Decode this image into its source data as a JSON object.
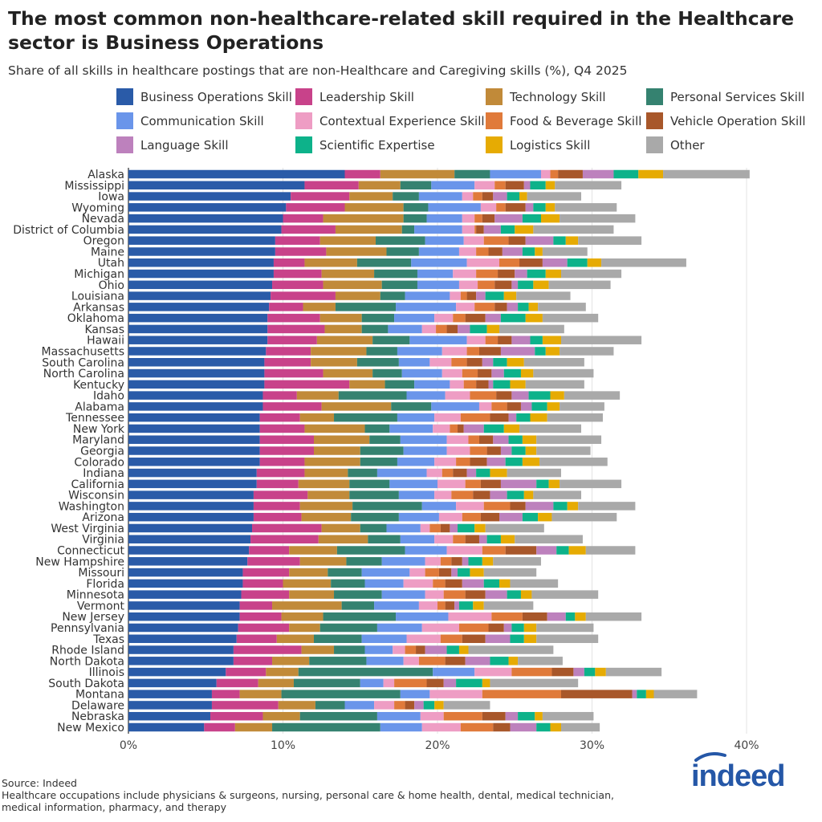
{
  "title": "The most common non-healthcare-related skill required in the Healthcare sector is Business Operations",
  "subtitle": "Share of all skills in healthcare postings that are non-Healthcare and Caregiving skills (%), Q4 2025",
  "source": "Source: Indeed",
  "note": "Healthcare occupations include physicians & surgeons, nursing, personal care & home health, dental, medical technician, medical information, pharmacy, and therapy",
  "logo_text": "indeed",
  "chart_data": {
    "type": "bar",
    "orientation": "horizontal",
    "stacked": true,
    "xlim": [
      0,
      40
    ],
    "x_ticks": [
      "0%",
      "10%",
      "20%",
      "30%",
      "40%"
    ],
    "x_tick_values": [
      0,
      10,
      20,
      30,
      40
    ],
    "grid": true,
    "legend_position": "top",
    "categories": [
      "Alaska",
      "Mississippi",
      "Iowa",
      "Wyoming",
      "Nevada",
      "District of Columbia",
      "Oregon",
      "Maine",
      "Utah",
      "Michigan",
      "Ohio",
      "Louisiana",
      "Arkansas",
      "Oklahoma",
      "Kansas",
      "Hawaii",
      "Massachusetts",
      "South Carolina",
      "North Carolina",
      "Kentucky",
      "Idaho",
      "Alabama",
      "Tennessee",
      "New York",
      "Maryland",
      "Georgia",
      "Colorado",
      "Indiana",
      "California",
      "Wisconsin",
      "Washington",
      "Arizona",
      "West Virginia",
      "Virginia",
      "Connecticut",
      "New Hampshire",
      "Missouri",
      "Florida",
      "Minnesota",
      "Vermont",
      "New Jersey",
      "Pennsylvania",
      "Texas",
      "Rhode Island",
      "North Dakota",
      "Illinois",
      "South Dakota",
      "Montana",
      "Delaware",
      "Nebraska",
      "New Mexico"
    ],
    "series_names": [
      "Business Operations Skill",
      "Leadership Skill",
      "Technology Skill",
      "Personal Services Skill",
      "Communication Skill",
      "Contextual Experience Skill",
      "Food & Beverage Skill",
      "Vehicle Operation Skill",
      "Language Skill",
      "Scientific Expertise",
      "Logistics Skill",
      "Other"
    ],
    "colors": [
      "#2a5ba8",
      "#c8428a",
      "#c18a39",
      "#358270",
      "#6a95ea",
      "#ee9dc4",
      "#e07a3a",
      "#a8572a",
      "#bd81bd",
      "#0db28a",
      "#e6ab03",
      "#a9a9a9"
    ],
    "values_by_row": [
      [
        14.0,
        2.3,
        4.8,
        2.3,
        3.3,
        0.6,
        0.5,
        1.6,
        2.0,
        1.6,
        1.6,
        5.6
      ],
      [
        11.4,
        3.5,
        2.7,
        2.0,
        2.8,
        1.3,
        0.7,
        1.2,
        0.4,
        1.0,
        0.6,
        4.3
      ],
      [
        10.5,
        3.8,
        2.8,
        1.7,
        2.8,
        0.7,
        0.6,
        0.7,
        0.9,
        0.8,
        0.5,
        3.5
      ],
      [
        10.2,
        3.8,
        3.8,
        1.6,
        3.4,
        1.0,
        0.6,
        1.3,
        0.5,
        0.8,
        0.6,
        4.0
      ],
      [
        10.0,
        2.6,
        5.2,
        1.5,
        2.3,
        0.8,
        0.5,
        0.8,
        1.8,
        1.2,
        1.2,
        4.9
      ],
      [
        9.9,
        3.5,
        4.3,
        0.8,
        3.1,
        0.8,
        0.1,
        0.5,
        1.1,
        0.9,
        1.2,
        5.2
      ],
      [
        9.5,
        2.9,
        3.6,
        3.2,
        2.5,
        1.3,
        1.6,
        1.1,
        1.8,
        0.8,
        0.8,
        4.1
      ],
      [
        9.5,
        3.3,
        3.9,
        2.1,
        2.6,
        1.1,
        0.8,
        0.9,
        1.3,
        0.8,
        0.5,
        2.9
      ],
      [
        9.4,
        2.0,
        3.4,
        3.5,
        3.6,
        2.1,
        1.3,
        1.5,
        1.6,
        1.3,
        0.9,
        5.5
      ],
      [
        9.4,
        3.1,
        3.4,
        2.8,
        2.3,
        1.5,
        1.4,
        1.1,
        0.8,
        1.2,
        1.0,
        3.9
      ],
      [
        9.3,
        3.3,
        3.8,
        2.3,
        2.7,
        1.2,
        1.1,
        1.1,
        0.4,
        1.0,
        1.0,
        4.0
      ],
      [
        9.2,
        4.2,
        2.9,
        1.6,
        2.9,
        0.7,
        0.4,
        0.6,
        0.6,
        1.2,
        0.8,
        3.5
      ],
      [
        9.1,
        2.2,
        2.1,
        3.9,
        3.9,
        1.2,
        1.3,
        0.8,
        0.7,
        0.7,
        0.6,
        3.1
      ],
      [
        9.0,
        3.4,
        2.7,
        2.1,
        2.6,
        1.2,
        0.8,
        1.3,
        1.0,
        1.6,
        1.1,
        3.6
      ],
      [
        9.0,
        3.7,
        2.4,
        1.7,
        2.2,
        0.9,
        0.7,
        0.7,
        0.8,
        1.1,
        0.8,
        4.2
      ],
      [
        9.0,
        3.2,
        3.6,
        2.4,
        3.7,
        1.2,
        0.8,
        0.9,
        1.2,
        0.8,
        1.2,
        5.2
      ],
      [
        8.9,
        2.9,
        3.6,
        2.0,
        2.9,
        1.6,
        0.8,
        1.4,
        2.2,
        0.7,
        0.9,
        3.5
      ],
      [
        8.8,
        3.0,
        3.0,
        2.7,
        2.0,
        1.4,
        1.0,
        1.0,
        0.7,
        0.9,
        1.1,
        3.9
      ],
      [
        8.8,
        3.8,
        3.2,
        1.9,
        2.6,
        1.3,
        1.0,
        0.9,
        0.8,
        1.1,
        0.8,
        3.9
      ],
      [
        8.8,
        5.5,
        2.3,
        1.9,
        2.3,
        0.9,
        0.8,
        0.8,
        0.3,
        1.1,
        1.0,
        3.8
      ],
      [
        8.7,
        2.2,
        2.7,
        4.4,
        2.5,
        1.6,
        1.7,
        1.0,
        1.1,
        1.4,
        0.9,
        3.6
      ],
      [
        8.7,
        3.8,
        4.5,
        2.6,
        3.1,
        0.8,
        1.0,
        0.9,
        0.7,
        1.0,
        0.8,
        2.9
      ],
      [
        8.5,
        2.6,
        2.2,
        4.1,
        2.4,
        1.7,
        1.9,
        1.2,
        0.5,
        0.9,
        1.1,
        3.6
      ],
      [
        8.5,
        2.9,
        3.9,
        1.6,
        2.8,
        1.1,
        0.5,
        0.4,
        1.3,
        1.3,
        1.0,
        4.0
      ],
      [
        8.5,
        3.5,
        3.6,
        2.0,
        3.0,
        1.4,
        0.7,
        0.9,
        1.0,
        0.9,
        0.9,
        4.2
      ],
      [
        8.5,
        3.5,
        3.0,
        2.8,
        2.8,
        1.5,
        1.1,
        0.9,
        0.7,
        0.9,
        0.7,
        3.5
      ],
      [
        8.5,
        2.9,
        3.6,
        2.4,
        2.4,
        1.4,
        0.9,
        1.1,
        1.2,
        1.1,
        1.1,
        4.4
      ],
      [
        8.3,
        3.1,
        2.8,
        1.9,
        3.2,
        1.0,
        0.7,
        0.9,
        0.6,
        0.9,
        1.1,
        3.5
      ],
      [
        8.3,
        2.7,
        3.3,
        2.6,
        3.1,
        1.8,
        1.0,
        1.3,
        2.3,
        0.8,
        0.7,
        4.0
      ],
      [
        8.1,
        3.5,
        2.7,
        3.2,
        2.3,
        1.1,
        1.4,
        1.1,
        1.1,
        1.1,
        0.6,
        3.1
      ],
      [
        8.1,
        3.0,
        3.4,
        4.5,
        2.2,
        1.8,
        1.7,
        1.0,
        1.8,
        0.9,
        0.7,
        3.7
      ],
      [
        8.1,
        3.1,
        3.2,
        3.1,
        2.6,
        1.5,
        1.2,
        1.2,
        1.5,
        1.0,
        0.9,
        4.2
      ],
      [
        8.0,
        4.5,
        2.5,
        1.7,
        2.2,
        0.6,
        0.7,
        0.6,
        0.5,
        1.1,
        0.7,
        3.8
      ],
      [
        7.9,
        4.4,
        3.2,
        2.1,
        2.2,
        1.2,
        0.8,
        0.9,
        0.5,
        0.9,
        0.9,
        4.4
      ],
      [
        7.8,
        2.6,
        3.1,
        4.4,
        2.7,
        2.3,
        1.5,
        2.0,
        1.3,
        0.8,
        1.1,
        3.2
      ],
      [
        7.7,
        3.4,
        3.0,
        2.3,
        2.8,
        1.0,
        0.7,
        0.7,
        0.4,
        0.9,
        0.7,
        3.1
      ],
      [
        7.4,
        3.0,
        2.5,
        2.2,
        3.1,
        1.0,
        0.9,
        0.8,
        0.4,
        0.8,
        0.9,
        3.4
      ],
      [
        7.4,
        2.6,
        3.1,
        2.2,
        2.5,
        1.9,
        0.8,
        1.1,
        1.4,
        1.0,
        0.7,
        3.1
      ],
      [
        7.3,
        3.1,
        2.9,
        3.1,
        2.8,
        1.2,
        1.4,
        1.3,
        1.4,
        0.9,
        0.7,
        4.3
      ],
      [
        7.2,
        2.1,
        4.5,
        2.1,
        2.9,
        1.2,
        0.5,
        0.6,
        0.3,
        0.9,
        0.7,
        3.2
      ],
      [
        7.2,
        2.7,
        2.7,
        4.7,
        3.4,
        2.8,
        2.0,
        1.6,
        1.2,
        0.6,
        0.7,
        3.6
      ],
      [
        7.1,
        3.3,
        2.0,
        3.7,
        2.9,
        2.4,
        1.9,
        1.0,
        0.5,
        0.8,
        0.8,
        3.7
      ],
      [
        7.0,
        2.6,
        2.4,
        3.1,
        2.9,
        2.2,
        1.4,
        1.5,
        1.6,
        0.9,
        0.8,
        4.0
      ],
      [
        6.8,
        4.4,
        2.1,
        2.0,
        1.8,
        0.8,
        0.7,
        0.6,
        1.4,
        0.8,
        0.6,
        5.5
      ],
      [
        6.8,
        2.5,
        2.4,
        3.7,
        2.4,
        1.0,
        1.7,
        1.3,
        1.6,
        1.2,
        0.6,
        2.9
      ],
      [
        6.3,
        2.6,
        2.1,
        8.7,
        2.7,
        2.4,
        2.6,
        1.4,
        0.7,
        0.7,
        0.7,
        3.6
      ],
      [
        5.7,
        2.7,
        2.3,
        4.3,
        1.5,
        0.7,
        2.1,
        1.1,
        0.8,
        1.7,
        0.5,
        5.7
      ],
      [
        5.4,
        1.8,
        2.7,
        7.7,
        1.9,
        3.4,
        5.1,
        4.6,
        0.3,
        0.6,
        0.5,
        2.8
      ],
      [
        5.4,
        4.3,
        2.4,
        1.9,
        1.9,
        1.3,
        0.7,
        0.6,
        0.6,
        0.7,
        0.6,
        3.0
      ],
      [
        5.3,
        3.4,
        2.4,
        5.0,
        2.8,
        1.5,
        2.5,
        1.5,
        0.8,
        1.1,
        0.5,
        3.3
      ],
      [
        4.9,
        2.0,
        2.4,
        7.0,
        2.7,
        2.5,
        2.1,
        1.1,
        1.7,
        0.9,
        0.7,
        2.5
      ]
    ]
  }
}
